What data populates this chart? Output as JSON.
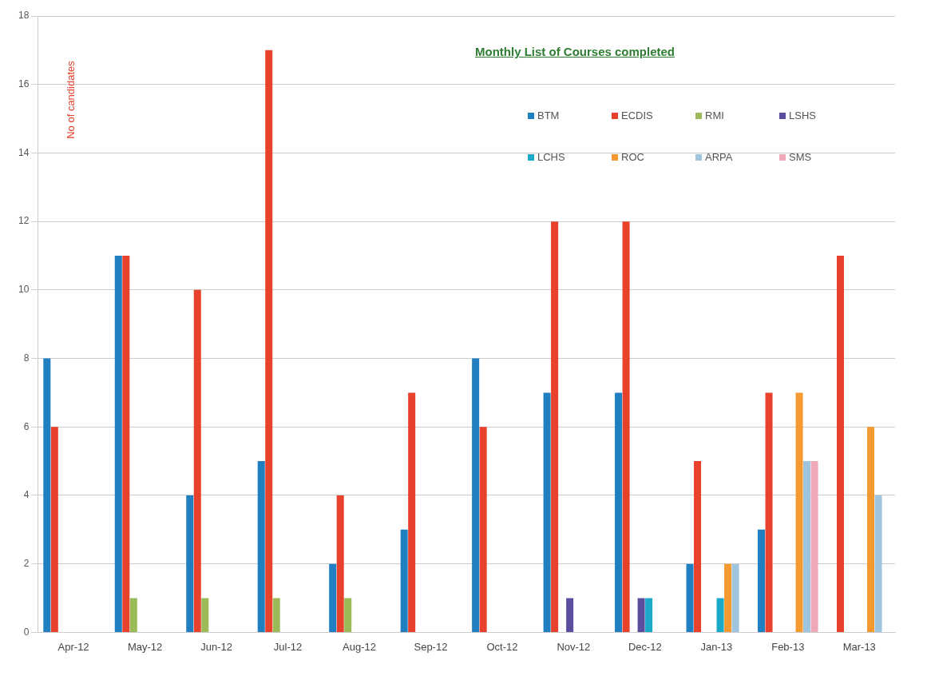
{
  "chart_data": {
    "type": "bar",
    "title": "Monthly List of Courses completed",
    "ylabel": "No of candidates",
    "categories": [
      "Apr-12",
      "May-12",
      "Jun-12",
      "Jul-12",
      "Aug-12",
      "Sep-12",
      "Oct-12",
      "Nov-12",
      "Dec-12",
      "Jan-13",
      "Feb-13",
      "Mar-13"
    ],
    "series": [
      {
        "name": "BTM",
        "color": "#1f7fc0",
        "values": [
          8,
          11,
          4,
          5,
          2,
          3,
          8,
          7,
          7,
          2,
          3,
          null
        ]
      },
      {
        "name": "ECDIS",
        "color": "#e8412c",
        "values": [
          6,
          11,
          10,
          17,
          4,
          7,
          6,
          12,
          12,
          5,
          7,
          11
        ]
      },
      {
        "name": "RMI",
        "color": "#9bbb59",
        "values": [
          null,
          1,
          1,
          1,
          1,
          null,
          null,
          null,
          null,
          null,
          null,
          null
        ]
      },
      {
        "name": "LSHS",
        "color": "#5a4f9e",
        "values": [
          null,
          null,
          null,
          null,
          null,
          null,
          null,
          1,
          1,
          null,
          null,
          null
        ]
      },
      {
        "name": "LCHS",
        "color": "#1aa9c9",
        "values": [
          null,
          null,
          null,
          null,
          null,
          null,
          null,
          null,
          1,
          1,
          null,
          null
        ]
      },
      {
        "name": "ROC",
        "color": "#f59a30",
        "values": [
          null,
          null,
          null,
          null,
          null,
          null,
          null,
          null,
          null,
          2,
          7,
          6
        ]
      },
      {
        "name": "ARPA",
        "color": "#9ec4de",
        "values": [
          null,
          null,
          null,
          null,
          null,
          null,
          null,
          null,
          null,
          2,
          5,
          4
        ]
      },
      {
        "name": "SMS",
        "color": "#f0a8b8",
        "values": [
          null,
          null,
          null,
          null,
          null,
          null,
          null,
          null,
          null,
          null,
          5,
          null
        ]
      }
    ],
    "ylim": [
      0,
      18
    ],
    "yticks": [
      0,
      2,
      4,
      6,
      8,
      10,
      12,
      14,
      16,
      18
    ],
    "grid": "y",
    "legend": "top right"
  }
}
